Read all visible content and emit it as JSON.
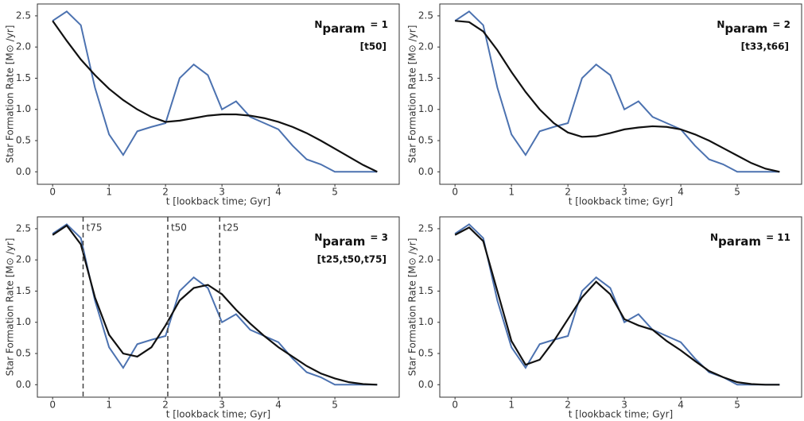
{
  "chart_data": [
    {
      "type": "line",
      "xlabel": "t [lookback time; Gyr]",
      "ylabel": "Star Formation Rate [M⊙ /yr]",
      "annotation": {
        "symbol": "N",
        "subscript": "param",
        "text": "= 1",
        "params": "[t50]"
      },
      "x": [
        0,
        0.25,
        0.5,
        0.75,
        1.0,
        1.25,
        1.5,
        1.75,
        2.0,
        2.25,
        2.5,
        2.75,
        3.0,
        3.25,
        3.5,
        3.75,
        4.0,
        4.25,
        4.5,
        4.75,
        5.0,
        5.25,
        5.5,
        5.75
      ],
      "series": [
        {
          "color": "#4c72b0",
          "values": [
            2.42,
            2.57,
            2.35,
            1.35,
            0.6,
            0.27,
            0.65,
            0.72,
            0.78,
            1.5,
            1.72,
            1.55,
            1.0,
            1.13,
            0.88,
            0.78,
            0.68,
            0.42,
            0.2,
            0.12,
            0.0,
            0.0,
            0.0,
            0.0
          ]
        },
        {
          "color": "#111111",
          "values": [
            2.42,
            2.1,
            1.8,
            1.55,
            1.33,
            1.15,
            1.0,
            0.88,
            0.8,
            0.82,
            0.86,
            0.9,
            0.92,
            0.92,
            0.9,
            0.86,
            0.8,
            0.72,
            0.62,
            0.5,
            0.37,
            0.24,
            0.11,
            0.0
          ]
        }
      ],
      "xlim": [
        -0.27,
        6.14
      ],
      "xticks": [
        0,
        1,
        2,
        3,
        4,
        5
      ],
      "ylim": [
        -0.2,
        2.69
      ],
      "yticks": [
        {
          "value": 0,
          "label": "0.0"
        },
        {
          "value": 0.5,
          "label": "0.5"
        },
        {
          "value": 1,
          "label": "1.0"
        },
        {
          "value": 1.5,
          "label": "1.5"
        },
        {
          "value": 2,
          "label": "2.0"
        },
        {
          "value": 2.5,
          "label": "2.5"
        }
      ]
    },
    {
      "type": "line",
      "xlabel": "t [lookback time; Gyr]",
      "ylabel": "Star Formation Rate [M⊙ /yr]",
      "annotation": {
        "symbol": "N",
        "subscript": "param",
        "text": "= 2",
        "params": "[t33,t66]"
      },
      "x": [
        0,
        0.25,
        0.5,
        0.75,
        1.0,
        1.25,
        1.5,
        1.75,
        2.0,
        2.25,
        2.5,
        2.75,
        3.0,
        3.25,
        3.5,
        3.75,
        4.0,
        4.25,
        4.5,
        4.75,
        5.0,
        5.25,
        5.5,
        5.75
      ],
      "series": [
        {
          "color": "#4c72b0",
          "values": [
            2.42,
            2.57,
            2.35,
            1.35,
            0.6,
            0.27,
            0.65,
            0.72,
            0.78,
            1.5,
            1.72,
            1.55,
            1.0,
            1.13,
            0.88,
            0.78,
            0.68,
            0.42,
            0.2,
            0.12,
            0.0,
            0.0,
            0.0,
            0.0
          ]
        },
        {
          "color": "#111111",
          "values": [
            2.42,
            2.4,
            2.25,
            1.95,
            1.6,
            1.28,
            1.0,
            0.78,
            0.63,
            0.56,
            0.57,
            0.62,
            0.68,
            0.71,
            0.73,
            0.72,
            0.68,
            0.6,
            0.5,
            0.38,
            0.26,
            0.14,
            0.05,
            0.0
          ]
        }
      ],
      "xlim": [
        -0.27,
        6.14
      ],
      "xticks": [
        0,
        1,
        2,
        3,
        4,
        5
      ],
      "ylim": [
        -0.2,
        2.69
      ],
      "yticks": [
        {
          "value": 0,
          "label": "0.0"
        },
        {
          "value": 0.5,
          "label": "0.5"
        },
        {
          "value": 1,
          "label": "1.0"
        },
        {
          "value": 1.5,
          "label": "1.5"
        },
        {
          "value": 2,
          "label": "2.0"
        },
        {
          "value": 2.5,
          "label": "2.5"
        }
      ]
    },
    {
      "type": "line",
      "xlabel": "t [lookback time; Gyr]",
      "ylabel": "Star Formation Rate [M⊙ /yr]",
      "annotation": {
        "symbol": "N",
        "subscript": "param",
        "text": "= 3",
        "params": "[t25,t50,t75]"
      },
      "markers": [
        {
          "x": 0.54,
          "label": "t75"
        },
        {
          "x": 2.04,
          "label": "t50"
        },
        {
          "x": 2.96,
          "label": "t25"
        }
      ],
      "x": [
        0,
        0.25,
        0.5,
        0.75,
        1.0,
        1.25,
        1.5,
        1.75,
        2.0,
        2.25,
        2.5,
        2.75,
        3.0,
        3.25,
        3.5,
        3.75,
        4.0,
        4.25,
        4.5,
        4.75,
        5.0,
        5.25,
        5.5,
        5.75
      ],
      "series": [
        {
          "color": "#4c72b0",
          "values": [
            2.42,
            2.57,
            2.35,
            1.35,
            0.6,
            0.27,
            0.65,
            0.72,
            0.78,
            1.5,
            1.72,
            1.55,
            1.0,
            1.13,
            0.88,
            0.78,
            0.68,
            0.42,
            0.2,
            0.12,
            0.0,
            0.0,
            0.0,
            0.0
          ]
        },
        {
          "color": "#111111",
          "values": [
            2.4,
            2.55,
            2.25,
            1.4,
            0.8,
            0.5,
            0.45,
            0.6,
            0.95,
            1.35,
            1.55,
            1.6,
            1.45,
            1.2,
            0.98,
            0.78,
            0.6,
            0.45,
            0.3,
            0.18,
            0.1,
            0.04,
            0.01,
            0.0
          ]
        }
      ],
      "xlim": [
        -0.27,
        6.14
      ],
      "xticks": [
        0,
        1,
        2,
        3,
        4,
        5
      ],
      "ylim": [
        -0.2,
        2.69
      ],
      "yticks": [
        {
          "value": 0,
          "label": "0.0"
        },
        {
          "value": 0.5,
          "label": "0.5"
        },
        {
          "value": 1,
          "label": "1.0"
        },
        {
          "value": 1.5,
          "label": "1.5"
        },
        {
          "value": 2,
          "label": "2.0"
        },
        {
          "value": 2.5,
          "label": "2.5"
        }
      ]
    },
    {
      "type": "line",
      "xlabel": "t [lookback time; Gyr]",
      "ylabel": "Star Formation Rate [M⊙ /yr]",
      "annotation": {
        "symbol": "N",
        "subscript": "param",
        "text": "= 11"
      },
      "x": [
        0,
        0.25,
        0.5,
        0.75,
        1.0,
        1.25,
        1.5,
        1.75,
        2.0,
        2.25,
        2.5,
        2.75,
        3.0,
        3.25,
        3.5,
        3.75,
        4.0,
        4.25,
        4.5,
        4.75,
        5.0,
        5.25,
        5.5,
        5.75
      ],
      "series": [
        {
          "color": "#4c72b0",
          "values": [
            2.42,
            2.57,
            2.35,
            1.35,
            0.6,
            0.27,
            0.65,
            0.72,
            0.78,
            1.5,
            1.72,
            1.55,
            1.0,
            1.13,
            0.88,
            0.78,
            0.68,
            0.42,
            0.2,
            0.12,
            0.0,
            0.0,
            0.0,
            0.0
          ]
        },
        {
          "color": "#111111",
          "values": [
            2.4,
            2.52,
            2.3,
            1.5,
            0.7,
            0.32,
            0.4,
            0.7,
            1.05,
            1.4,
            1.65,
            1.45,
            1.05,
            0.95,
            0.88,
            0.7,
            0.55,
            0.38,
            0.22,
            0.12,
            0.04,
            0.01,
            0.0,
            0.0
          ]
        }
      ],
      "xlim": [
        -0.27,
        6.14
      ],
      "xticks": [
        0,
        1,
        2,
        3,
        4,
        5
      ],
      "ylim": [
        -0.2,
        2.69
      ],
      "yticks": [
        {
          "value": 0,
          "label": "0.0"
        },
        {
          "value": 0.5,
          "label": "0.5"
        },
        {
          "value": 1,
          "label": "1.0"
        },
        {
          "value": 1.5,
          "label": "1.5"
        },
        {
          "value": 2,
          "label": "2.0"
        },
        {
          "value": 2.5,
          "label": "2.5"
        }
      ]
    }
  ]
}
